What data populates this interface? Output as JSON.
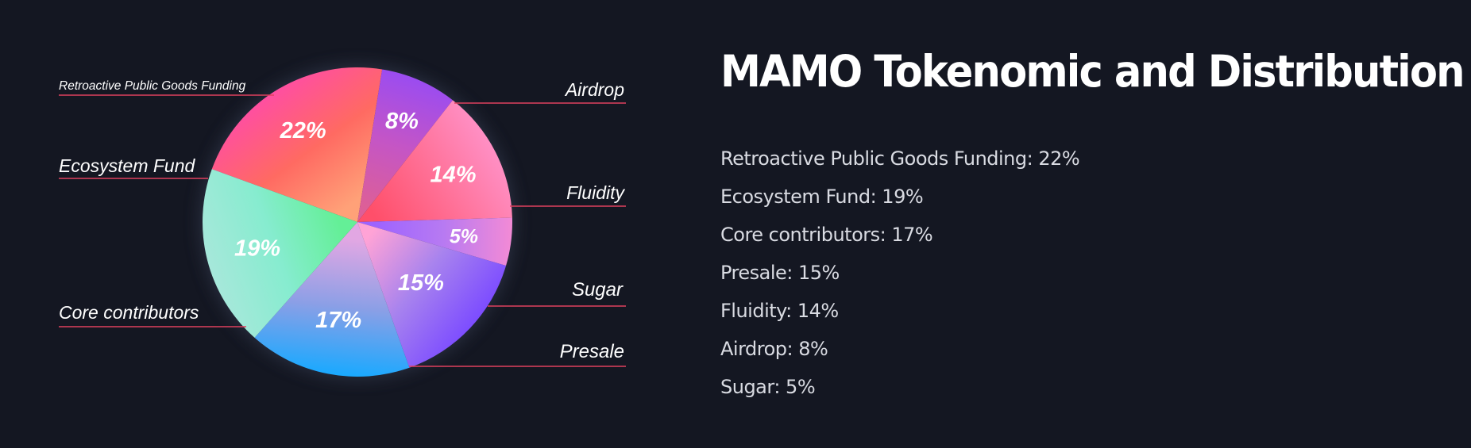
{
  "chart_data": {
    "type": "pie",
    "title": "MAMO Tokenomic and Distribution",
    "slices": [
      {
        "label": "Retroactive Public Goods Funding",
        "value": 22,
        "display": "22%",
        "legend": "Retroactive Public Goods Funding: 22%"
      },
      {
        "label": "Airdrop",
        "value": 8,
        "display": "8%",
        "legend": "Airdrop: 8%"
      },
      {
        "label": "Fluidity",
        "value": 14,
        "display": "14%",
        "legend": "Fluidity: 14%"
      },
      {
        "label": "Sugar",
        "value": 5,
        "display": "5%",
        "legend": "Sugar: 5%"
      },
      {
        "label": "Presale",
        "value": 15,
        "display": "15%",
        "legend": "Presale: 15%"
      },
      {
        "label": "Core contributors",
        "value": 17,
        "display": "17%",
        "legend": "Core contributors: 17%"
      },
      {
        "label": "Ecosystem Fund",
        "value": 19,
        "display": "19%",
        "legend": "Ecosystem Fund: 19%"
      }
    ],
    "legend_order": [
      "Retroactive Public Goods Funding: 22%",
      "Ecosystem Fund: 19%",
      "Core contributors: 17%",
      "Presale: 15%",
      "Fluidity: 14%",
      "Airdrop: 8%",
      "Sugar: 5%"
    ]
  },
  "colors": {
    "background": "#141722",
    "leader_line": "#e0405e",
    "slice_gradients": {
      "Retroactive Public Goods Funding": [
        "#ff4fa0",
        "#ff6a62",
        "#ffa178"
      ],
      "Airdrop": [
        "#9b4cf0",
        "#c455c6",
        "#dc5f98"
      ],
      "Fluidity": [
        "#ff8fc4",
        "#ff6f95",
        "#ff4f6a"
      ],
      "Sugar": [
        "#f28ad6",
        "#b77af2",
        "#9d63ff"
      ],
      "Presale": [
        "#7d4dff",
        "#a883ee",
        "#ffa3d6"
      ],
      "Core contributors": [
        "#1aa9ff",
        "#8b9fe6",
        "#e2a7e3"
      ],
      "Ecosystem Fund": [
        "#a6e8da",
        "#86eccf",
        "#64ef97"
      ]
    }
  }
}
